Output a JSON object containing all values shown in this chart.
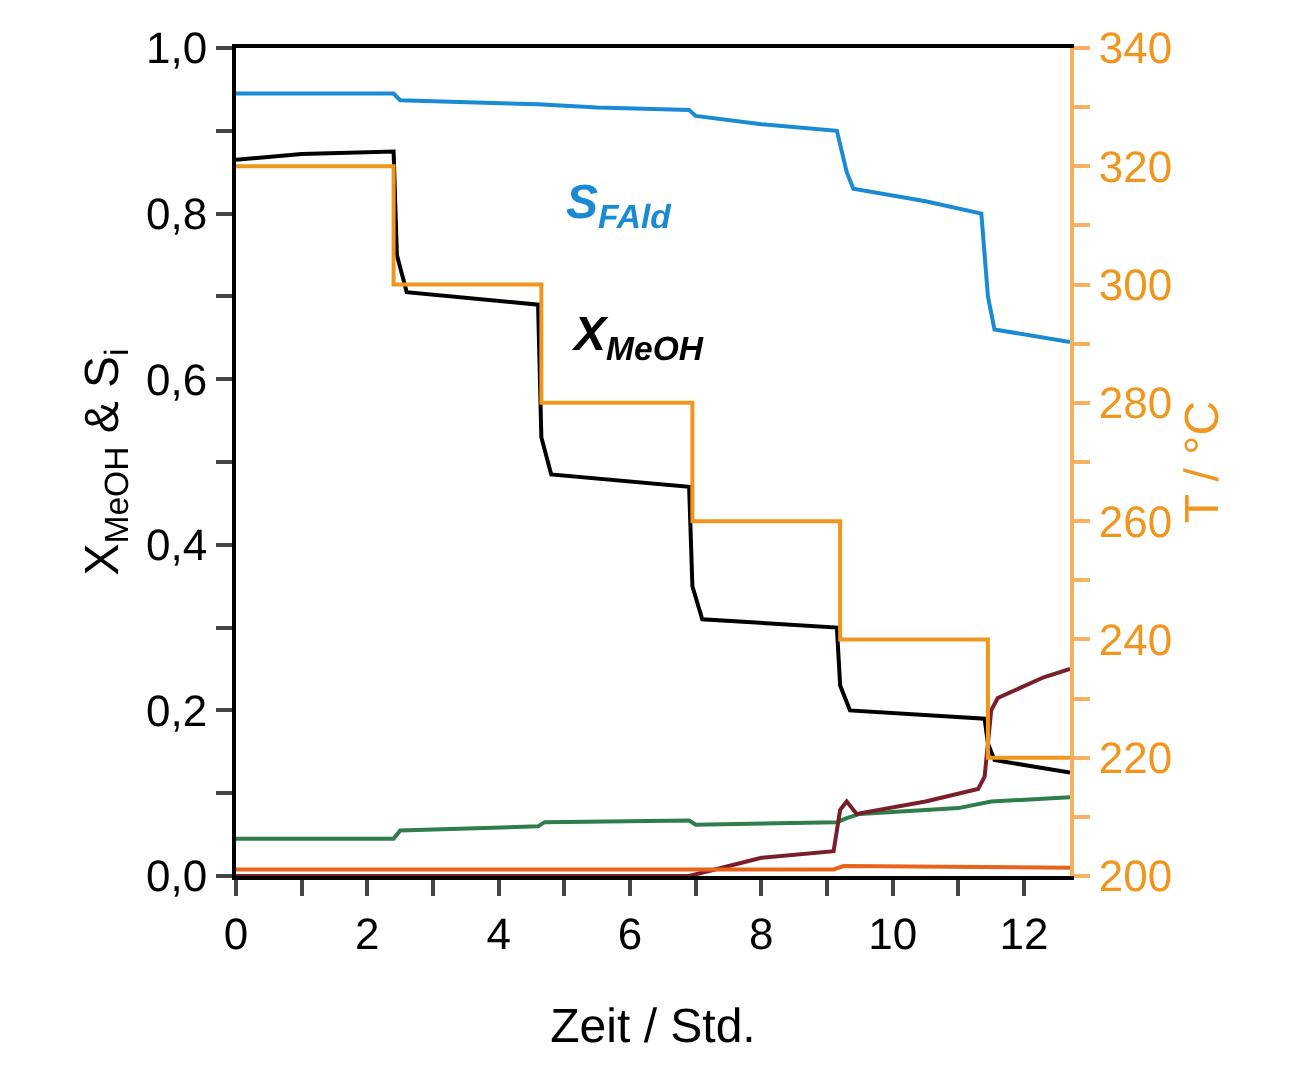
{
  "chart_data": {
    "type": "line",
    "xlabel": "Zeit / Std.",
    "ylabel": "X$_{MeOH}$ & S$_{i}$",
    "y2label": "T / °C",
    "xlim": [
      0,
      12.7
    ],
    "xticks": [
      0,
      {
        "value": 1,
        "label": null
      },
      2,
      {
        "value": 3,
        "label": null
      },
      4,
      {
        "value": 5,
        "label": null
      },
      6,
      {
        "value": 7,
        "label": null
      },
      8,
      {
        "value": 9,
        "label": null
      },
      10,
      {
        "value": 11,
        "label": null
      },
      12
    ],
    "ylim": [
      0,
      1
    ],
    "yticks": [
      {
        "value": 0,
        "label": "0,0"
      },
      {
        "value": 0.1,
        "label": null
      },
      {
        "value": 0.2,
        "label": "0,2"
      },
      {
        "value": 0.3,
        "label": null
      },
      {
        "value": 0.4,
        "label": "0,4"
      },
      {
        "value": 0.5,
        "label": null
      },
      {
        "value": 0.6,
        "label": "0,6"
      },
      {
        "value": 0.7,
        "label": null
      },
      {
        "value": 0.8,
        "label": "0,8"
      },
      {
        "value": 0.9,
        "label": null
      },
      {
        "value": 1,
        "label": "1,0"
      }
    ],
    "y2lim": [
      200,
      340
    ],
    "y2ticks": [
      200,
      {
        "value": 210,
        "label": null
      },
      220,
      {
        "value": 230,
        "label": null
      },
      240,
      {
        "value": 250,
        "label": null
      },
      260,
      {
        "value": 270,
        "label": null
      },
      280,
      {
        "value": 290,
        "label": null
      },
      300,
      {
        "value": 310,
        "label": null
      },
      320,
      {
        "value": 330,
        "label": null
      },
      340
    ],
    "grid": false,
    "legend": false,
    "marker": "none",
    "series": [
      {
        "name": "S$_{FAld}$",
        "color": "#1a8ad4",
        "x": [
          0,
          2.4,
          2.5,
          4.6,
          5.5,
          6.9,
          7.0,
          8.0,
          9.15,
          9.3,
          9.4,
          10.5,
          11.35,
          11.45,
          11.55,
          12.7
        ],
        "values": [
          0.945,
          0.945,
          0.937,
          0.932,
          0.928,
          0.925,
          0.918,
          0.908,
          0.9,
          0.85,
          0.83,
          0.815,
          0.8,
          0.7,
          0.66,
          0.645
        ]
      },
      {
        "name": "X$_{MeOH}$",
        "color": "#000000",
        "x": [
          0,
          1,
          2.4,
          2.45,
          2.6,
          4.6,
          4.65,
          4.8,
          6.9,
          6.95,
          7.1,
          9.15,
          9.2,
          9.35,
          11.4,
          11.45,
          11.55,
          12.7
        ],
        "values": [
          0.865,
          0.872,
          0.875,
          0.75,
          0.705,
          0.69,
          0.53,
          0.485,
          0.47,
          0.35,
          0.31,
          0.3,
          0.23,
          0.2,
          0.19,
          0.16,
          0.14,
          0.125
        ]
      },
      {
        "type": "step",
        "axis": "y2",
        "color": "#f0961e",
        "x": [
          0,
          2.4,
          4.65,
          6.95,
          9.2,
          11.45,
          12.7
        ],
        "values": [
          320,
          300,
          280,
          260,
          240,
          220,
          220
        ]
      },
      {
        "color": "#2e7d4a",
        "x": [
          0,
          2.4,
          2.5,
          4.6,
          4.7,
          6.9,
          7.0,
          9.15,
          9.3,
          9.5,
          11.0,
          11.5,
          12.7
        ],
        "values": [
          0.045,
          0.045,
          0.055,
          0.06,
          0.065,
          0.067,
          0.062,
          0.065,
          0.07,
          0.075,
          0.082,
          0.09,
          0.095
        ]
      },
      {
        "color": "#7a1f2a",
        "x": [
          0,
          6.9,
          7.4,
          8.0,
          9.1,
          9.2,
          9.3,
          9.45,
          10.5,
          11.3,
          11.4,
          11.5,
          11.6,
          12.3,
          12.7
        ],
        "values": [
          0,
          0,
          0.01,
          0.022,
          0.03,
          0.08,
          0.09,
          0.075,
          0.09,
          0.105,
          0.12,
          0.2,
          0.215,
          0.24,
          0.25
        ]
      },
      {
        "color": "#e8641a",
        "x": [
          0,
          9.1,
          9.25,
          12.7
        ],
        "values": [
          0.008,
          0.008,
          0.012,
          0.01
        ]
      }
    ]
  }
}
